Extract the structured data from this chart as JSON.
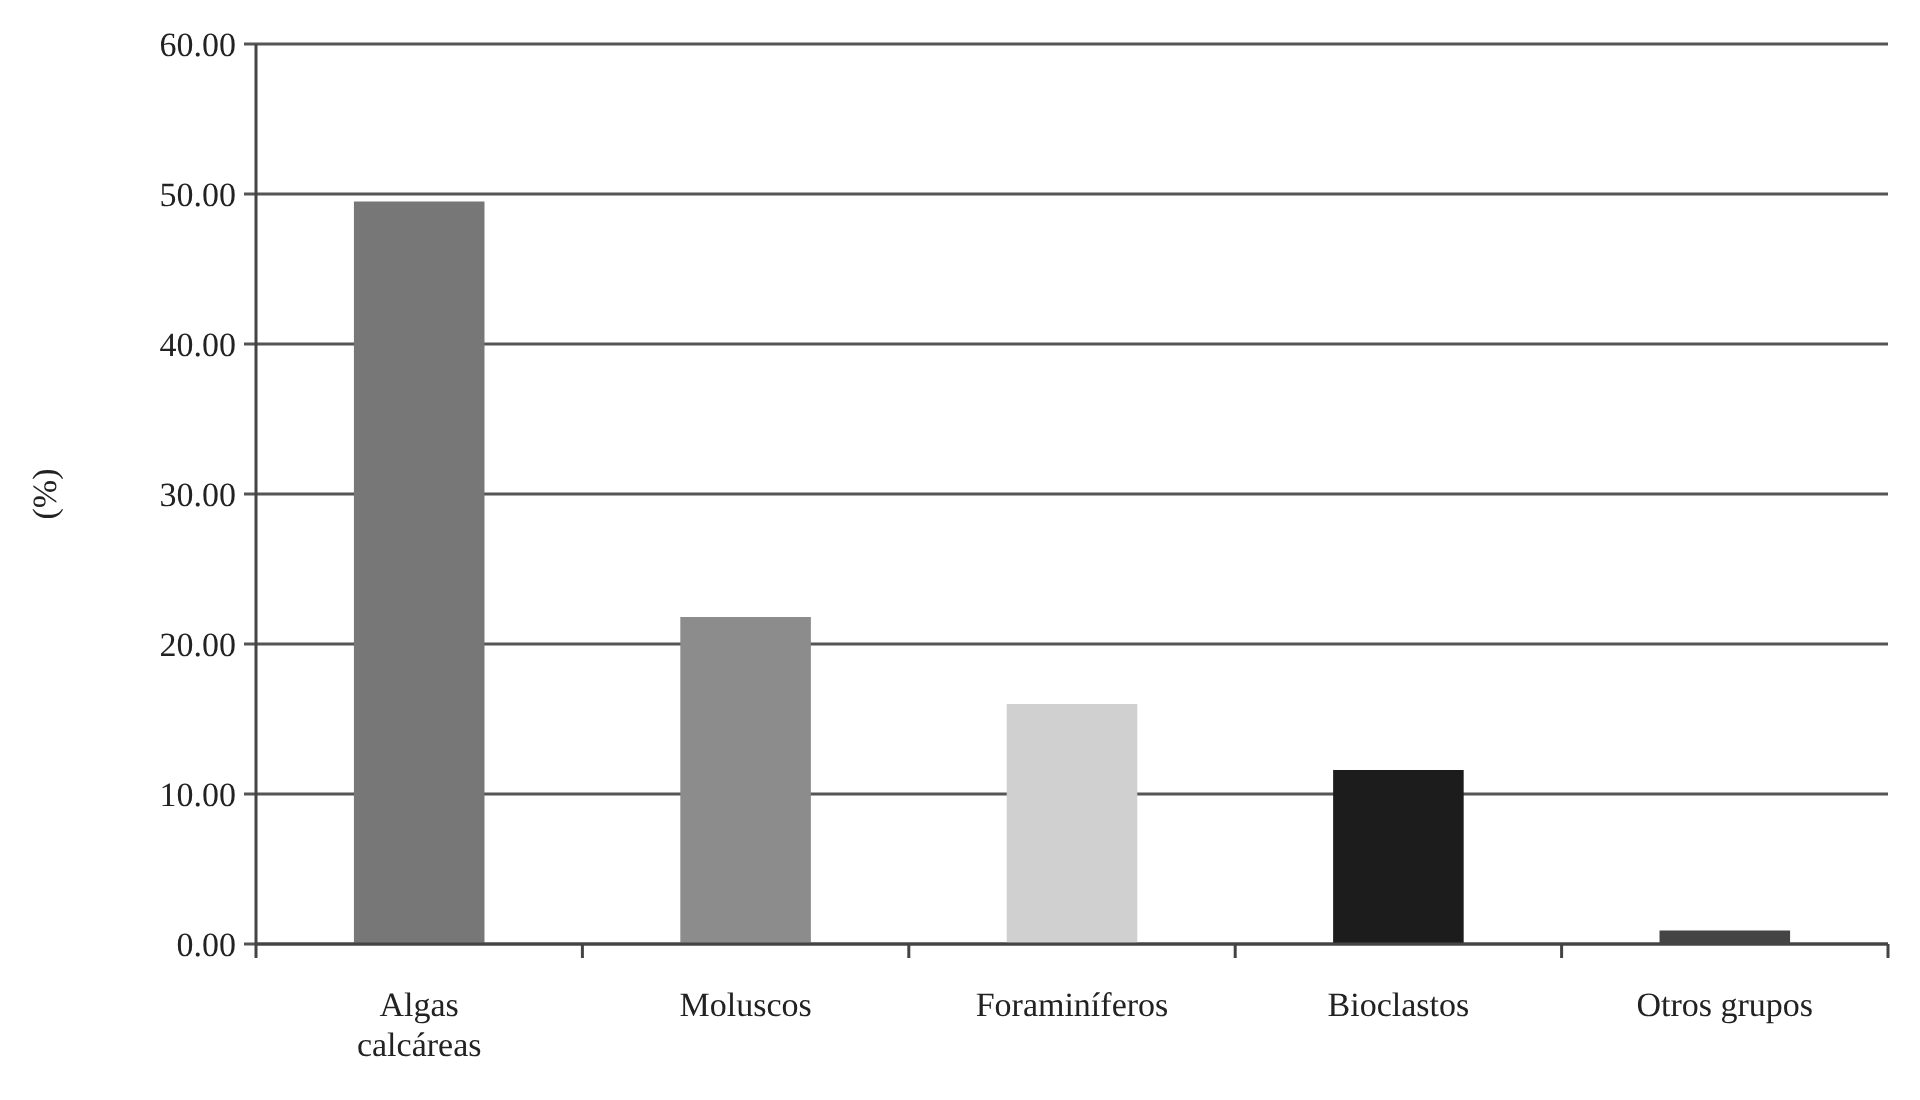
{
  "chart_data": {
    "type": "bar",
    "ylabel": "(%)",
    "categories": [
      "Algas calcáreas",
      "Moluscos",
      "Foraminíferos",
      "Bioclastos",
      "Otros grupos"
    ],
    "values": [
      49.5,
      21.8,
      16.0,
      11.6,
      0.9
    ],
    "colors": [
      "#777777",
      "#8c8c8c",
      "#d0d0d0",
      "#1c1c1c",
      "#444444"
    ],
    "ylim": [
      0,
      60
    ],
    "yticks": [
      {
        "value": 0,
        "label": "0.00"
      },
      {
        "value": 10,
        "label": "10.00"
      },
      {
        "value": 20,
        "label": "20.00"
      },
      {
        "value": 30,
        "label": "30.00"
      },
      {
        "value": 40,
        "label": "40.00"
      },
      {
        "value": 50,
        "label": "50.00"
      },
      {
        "value": 60,
        "label": "60.00"
      }
    ],
    "grid": "y"
  }
}
